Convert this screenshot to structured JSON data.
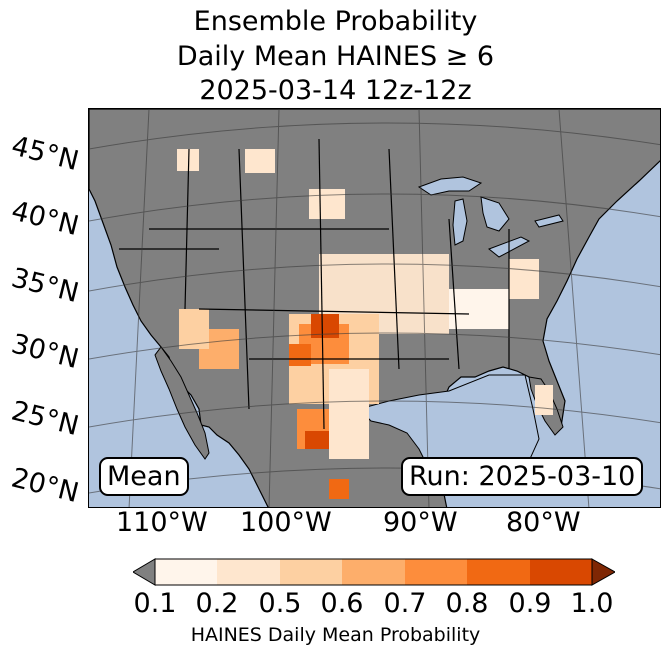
{
  "title": {
    "line1": "Ensemble Probability",
    "line2": "Daily Mean HAINES ≥ 6",
    "line3": "2025-03-14 12z-12z"
  },
  "map": {
    "lat_labels": [
      "45°N",
      "40°N",
      "35°N",
      "30°N",
      "25°N",
      "20°N"
    ],
    "lon_labels": [
      "110°W",
      "100°W",
      "90°W",
      "80°W"
    ],
    "stat_label": "Mean",
    "run_label": "Run: 2025-03-10",
    "colors": {
      "ocean": "#b0c4de",
      "land": "#808080",
      "border": "#000000"
    },
    "regions": [
      {
        "name": "southern-plains-core",
        "prob": 0.9
      },
      {
        "name": "west-texas",
        "prob": 0.7
      },
      {
        "name": "northern-mexico",
        "prob": 0.9
      },
      {
        "name": "central-plains",
        "prob": 0.2
      },
      {
        "name": "arizona-new-mexico",
        "prob": 0.6
      },
      {
        "name": "northern-rockies-patches",
        "prob": 0.2
      },
      {
        "name": "southeast-florida",
        "prob": 0.2
      }
    ]
  },
  "colorbar": {
    "label": "HAINES Daily Mean Probability",
    "ticks": [
      "0.1",
      "0.2",
      "0.5",
      "0.6",
      "0.7",
      "0.8",
      "0.9",
      "1.0"
    ],
    "colors": [
      "#fff5eb",
      "#fee6ce",
      "#fdd0a2",
      "#fdae6b",
      "#fd8d3c",
      "#f16913",
      "#d94801",
      "#a63603"
    ],
    "under_color": "#808080",
    "over_color": "#7f2704"
  }
}
